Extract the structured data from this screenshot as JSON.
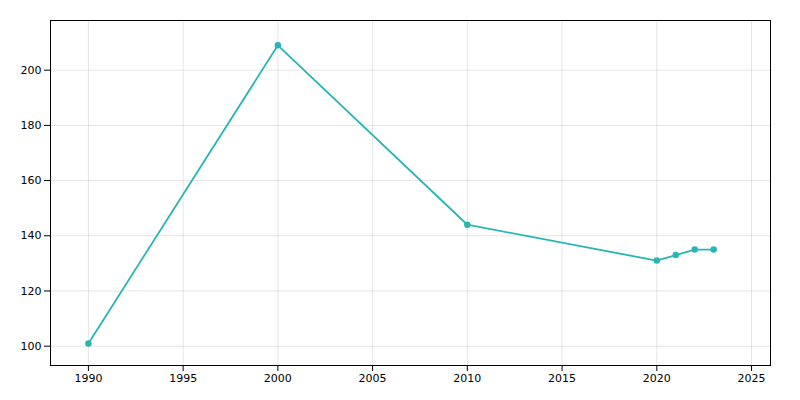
{
  "chart_data": {
    "type": "line",
    "x": [
      1990,
      2000,
      2010,
      2020,
      2021,
      2022,
      2023
    ],
    "values": [
      101,
      209,
      144,
      131,
      133,
      135,
      135
    ],
    "color": "#2ab5b5",
    "marker": "circle",
    "xlim": [
      1988,
      2026
    ],
    "ylim": [
      93,
      218
    ],
    "xticks": [
      1990,
      1995,
      2000,
      2005,
      2010,
      2015,
      2020,
      2025
    ],
    "yticks": [
      100,
      120,
      140,
      160,
      180,
      200
    ],
    "grid": true
  }
}
